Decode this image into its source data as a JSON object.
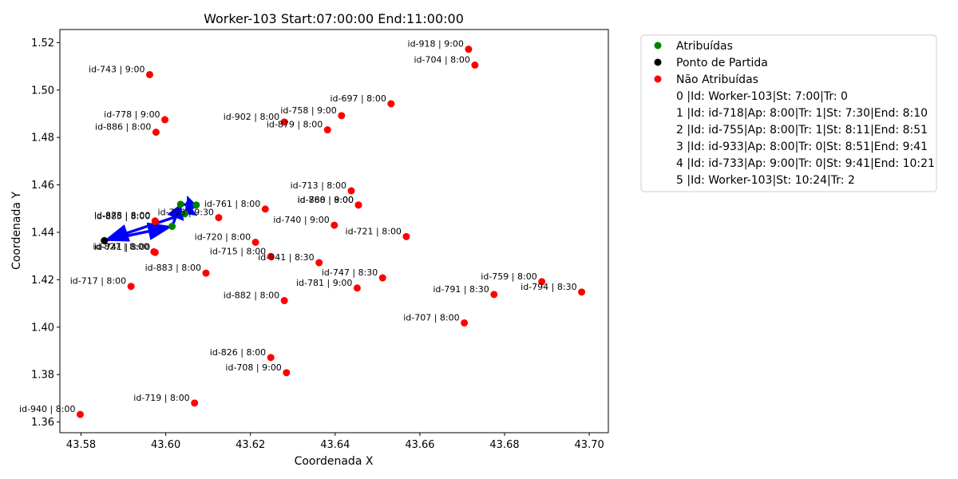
{
  "chart_data": {
    "type": "scatter",
    "title": "Worker-103 Start:07:00:00 End:11:00:00",
    "xlabel": "Coordenada X",
    "ylabel": "Coordenada Y",
    "xlim": [
      43.575,
      43.7045
    ],
    "ylim": [
      1.3555,
      1.5255
    ],
    "xticks": [
      43.58,
      43.6,
      43.62,
      43.64,
      43.66,
      43.68,
      43.7
    ],
    "xtick_labels": [
      "43.58",
      "43.60",
      "43.62",
      "43.64",
      "43.66",
      "43.68",
      "43.70"
    ],
    "yticks": [
      1.36,
      1.38,
      1.4,
      1.42,
      1.44,
      1.46,
      1.48,
      1.5,
      1.52
    ],
    "ytick_labels": [
      "1.36",
      "1.38",
      "1.40",
      "1.42",
      "1.44",
      "1.46",
      "1.48",
      "1.50",
      "1.52"
    ],
    "grid": false,
    "legend_position": "outside-right",
    "colors": {
      "assigned": "#008000",
      "start": "#000000",
      "unassigned": "#ff0000",
      "route": "#0000ff"
    },
    "legend": [
      {
        "label": "Atribuídas",
        "color": "#008000",
        "marker": true
      },
      {
        "label": "Ponto de Partida",
        "color": "#000000",
        "marker": true
      },
      {
        "label": "Não Atribuídas",
        "color": "#ff0000",
        "marker": true
      },
      {
        "label": "0 |Id: Worker-103|St: 7:00|Tr: 0",
        "marker": false
      },
      {
        "label": "1 |Id: id-718|Ap: 8:00|Tr: 1|St: 7:30|End: 8:10",
        "marker": false
      },
      {
        "label": "2 |Id: id-755|Ap: 8:00|Tr: 1|St: 8:11|End: 8:51",
        "marker": false
      },
      {
        "label": "3 |Id: id-933|Ap: 8:00|Tr: 0|St: 8:51|End: 9:41",
        "marker": false
      },
      {
        "label": "4 |Id: id-733|Ap: 9:00|Tr: 0|St: 9:41|End: 10:21",
        "marker": false
      },
      {
        "label": "5 |Id: Worker-103|St: 10:24|Tr: 2",
        "marker": false
      }
    ],
    "start_point": {
      "x": 43.5855,
      "y": 1.4365
    },
    "assigned": [
      {
        "x": 43.6015,
        "y": 1.4425
      },
      {
        "x": 43.6035,
        "y": 1.4518
      },
      {
        "x": 43.6072,
        "y": 1.4515
      },
      {
        "x": 43.6045,
        "y": 1.4478
      }
    ],
    "route": [
      {
        "x": 43.5855,
        "y": 1.4365
      },
      {
        "x": 43.6015,
        "y": 1.4425
      },
      {
        "x": 43.6035,
        "y": 1.4518
      },
      {
        "x": 43.6072,
        "y": 1.4515
      },
      {
        "x": 43.6045,
        "y": 1.4478
      },
      {
        "x": 43.5855,
        "y": 1.4365
      }
    ],
    "unassigned": [
      {
        "x": 43.6715,
        "y": 1.5172,
        "label": "id-918 | 9:00"
      },
      {
        "x": 43.673,
        "y": 1.5105,
        "label": "id-704 | 8:00"
      },
      {
        "x": 43.5962,
        "y": 1.5065,
        "label": "id-743 | 9:00"
      },
      {
        "x": 43.6532,
        "y": 1.4942,
        "label": "id-697 | 8:00"
      },
      {
        "x": 43.5998,
        "y": 1.4875,
        "label": "id-778 | 9:00"
      },
      {
        "x": 43.6415,
        "y": 1.4892,
        "label": "id-758 | 9:00"
      },
      {
        "x": 43.628,
        "y": 1.4865,
        "label": "id-902 | 8:00"
      },
      {
        "x": 43.6382,
        "y": 1.4832,
        "label": "id-879 | 8:00"
      },
      {
        "x": 43.5977,
        "y": 1.4822,
        "label": "id-886 | 8:00"
      },
      {
        "x": 43.6438,
        "y": 1.4575,
        "label": "id-713 | 8:00"
      },
      {
        "x": 43.6455,
        "y": 1.4515,
        "label": "id-788 | 9:00"
      },
      {
        "x": 43.6455,
        "y": 1.4515,
        "label": "id-860 | 8:00"
      },
      {
        "x": 43.6235,
        "y": 1.4498,
        "label": "id-761 | 8:00"
      },
      {
        "x": 43.5975,
        "y": 1.4448,
        "label": "id-878 | 8:00"
      },
      {
        "x": 43.6125,
        "y": 1.4462,
        "label": "id-753 | 9:30"
      },
      {
        "x": 43.5975,
        "y": 1.4445,
        "label": "id-885 | 8:00"
      },
      {
        "x": 43.6398,
        "y": 1.443,
        "label": "id-740 | 9:00"
      },
      {
        "x": 43.6568,
        "y": 1.4382,
        "label": "id-721 | 8:00"
      },
      {
        "x": 43.6212,
        "y": 1.4358,
        "label": "id-720 | 8:00"
      },
      {
        "x": 43.5972,
        "y": 1.4318,
        "label": "id-827 | 8:00"
      },
      {
        "x": 43.5975,
        "y": 1.4315,
        "label": "id-741 | 8:00"
      },
      {
        "x": 43.6248,
        "y": 1.4298,
        "label": "id-715 | 8:00"
      },
      {
        "x": 43.6362,
        "y": 1.4272,
        "label": "id-941 | 8:30"
      },
      {
        "x": 43.6095,
        "y": 1.4228,
        "label": "id-883 | 8:00"
      },
      {
        "x": 43.6512,
        "y": 1.4208,
        "label": "id-747 | 8:30"
      },
      {
        "x": 43.6888,
        "y": 1.4192,
        "label": "id-759 | 8:00"
      },
      {
        "x": 43.5918,
        "y": 1.4172,
        "label": "id-717 | 8:00"
      },
      {
        "x": 43.6452,
        "y": 1.4165,
        "label": "id-781 | 9:00"
      },
      {
        "x": 43.6775,
        "y": 1.4138,
        "label": "id-791 | 8:30"
      },
      {
        "x": 43.6982,
        "y": 1.4148,
        "label": "id-794 | 8:30"
      },
      {
        "x": 43.628,
        "y": 1.4112,
        "label": "id-882 | 8:00"
      },
      {
        "x": 43.6705,
        "y": 1.4018,
        "label": "id-707 | 8:00"
      },
      {
        "x": 43.6248,
        "y": 1.3872,
        "label": "id-826 | 8:00"
      },
      {
        "x": 43.6285,
        "y": 1.3808,
        "label": "id-708 | 9:00"
      },
      {
        "x": 43.6068,
        "y": 1.368,
        "label": "id-719 | 8:00"
      },
      {
        "x": 43.5798,
        "y": 1.3632,
        "label": "id-940 | 8:00"
      }
    ]
  }
}
